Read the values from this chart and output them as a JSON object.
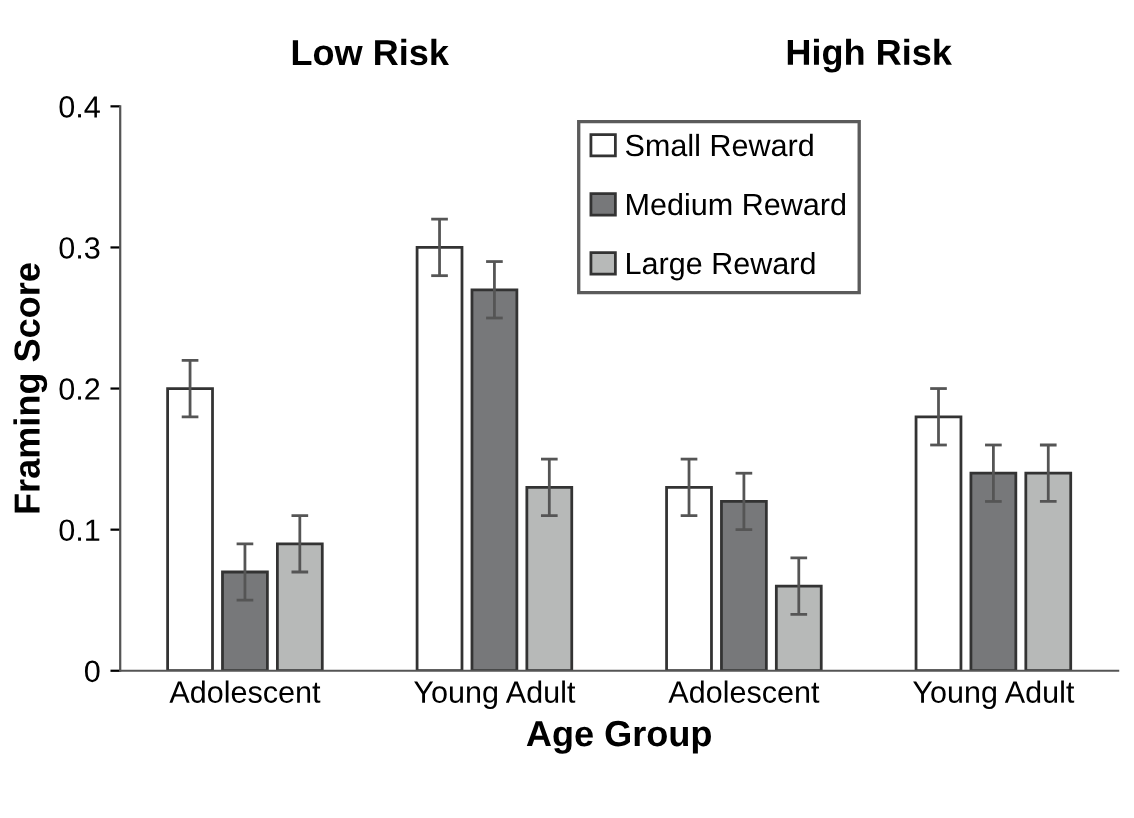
{
  "chart_data": {
    "type": "bar",
    "xlabel": "Age Group",
    "ylabel": "Framing Score",
    "annotations": [
      "Low Risk",
      "High Risk"
    ],
    "categories": [
      "Adolescent",
      "Young Adult",
      "Adolescent",
      "Young Adult"
    ],
    "series": [
      {
        "name": "Small Reward",
        "color": "#ffffff",
        "values": [
          0.2,
          0.3,
          0.13,
          0.18
        ],
        "errors": [
          0.02,
          0.02,
          0.02,
          0.02
        ]
      },
      {
        "name": "Medium Reward",
        "color": "#77787a",
        "values": [
          0.07,
          0.27,
          0.12,
          0.14
        ],
        "errors": [
          0.02,
          0.02,
          0.02,
          0.02
        ]
      },
      {
        "name": "Large Reward",
        "color": "#b7b9b8",
        "values": [
          0.09,
          0.13,
          0.06,
          0.14
        ],
        "errors": [
          0.02,
          0.02,
          0.02,
          0.02
        ]
      }
    ],
    "ylim": [
      0,
      0.4
    ],
    "yticks": [
      0,
      0.1,
      0.2,
      0.3,
      0.4
    ],
    "grid": false,
    "legend": "top"
  }
}
